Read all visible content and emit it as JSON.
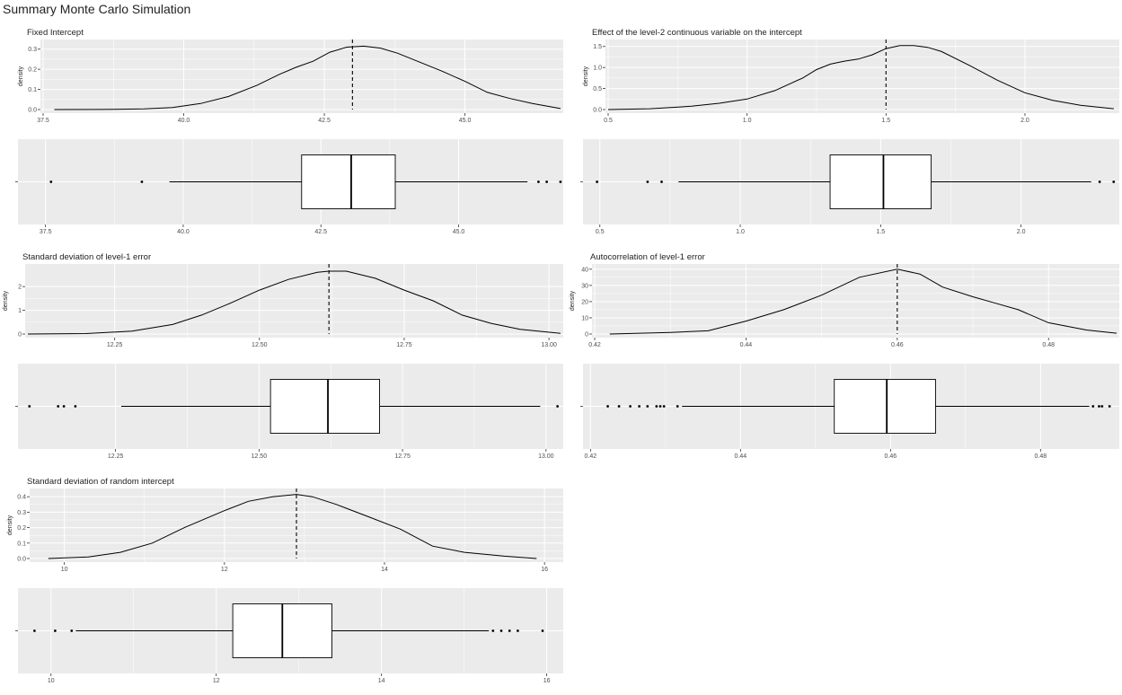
{
  "page": {
    "title": "Summary Monte Carlo Simulation"
  },
  "theme": {
    "panel_bg": "#EBEBEB",
    "grid": "#FFFFFF",
    "ink": "#000000",
    "tick_text": "#4D4D4D",
    "box_fill": "#FFFFFF"
  },
  "chart_data": [
    {
      "type": "area",
      "title": "Fixed Intercept",
      "ylabel": "density",
      "xlim": [
        37.5,
        46.7
      ],
      "ylim": [
        0,
        0.33
      ],
      "xticks": [
        37.5,
        40.0,
        42.5,
        45.0
      ],
      "xtick_labels": [
        "37.5",
        "40.0",
        "42.5",
        "45.0"
      ],
      "yticks": [
        0.0,
        0.1,
        0.2,
        0.3
      ],
      "ytick_labels": [
        "0.0",
        "0.1",
        "0.2",
        "0.3"
      ],
      "mean": 43.0,
      "x": [
        37.7,
        38.5,
        39.3,
        39.8,
        40.3,
        40.8,
        41.3,
        41.7,
        42.0,
        42.3,
        42.6,
        42.9,
        43.2,
        43.5,
        43.8,
        44.2,
        44.6,
        45.0,
        45.4,
        45.8,
        46.2,
        46.7
      ],
      "y": [
        0.0,
        0.0005,
        0.003,
        0.01,
        0.03,
        0.065,
        0.12,
        0.175,
        0.21,
        0.24,
        0.285,
        0.31,
        0.315,
        0.305,
        0.28,
        0.235,
        0.19,
        0.14,
        0.085,
        0.055,
        0.03,
        0.005
      ],
      "boxplot": {
        "xlim": [
          37.0,
          46.9
        ],
        "xticks": [
          37.5,
          40.0,
          42.5,
          45.0
        ],
        "xtick_labels": [
          "37.5",
          "40.0",
          "42.5",
          "45.0"
        ],
        "whisker_low": 39.75,
        "q1": 42.15,
        "median": 43.05,
        "q3": 43.85,
        "whisker_high": 46.25,
        "outliers": [
          37.6,
          39.25,
          46.45,
          46.6,
          46.85
        ]
      }
    },
    {
      "type": "area",
      "title": "Effect of the level-2 continuous variable on the intercept",
      "ylabel": "density",
      "xlim": [
        0.5,
        2.33
      ],
      "ylim": [
        0,
        1.58
      ],
      "xticks": [
        0.5,
        1.0,
        1.5,
        2.0
      ],
      "xtick_labels": [
        "0.5",
        "1.0",
        "1.5",
        "2.0"
      ],
      "yticks": [
        0.0,
        0.5,
        1.0,
        1.5
      ],
      "ytick_labels": [
        "0.0",
        "0.5",
        "1.0",
        "1.5"
      ],
      "mean": 1.5,
      "x": [
        0.5,
        0.65,
        0.8,
        0.9,
        1.0,
        1.1,
        1.2,
        1.25,
        1.3,
        1.35,
        1.4,
        1.45,
        1.5,
        1.55,
        1.6,
        1.65,
        1.7,
        1.8,
        1.9,
        2.0,
        2.1,
        2.2,
        2.32
      ],
      "y": [
        0.0,
        0.02,
        0.08,
        0.15,
        0.25,
        0.45,
        0.75,
        0.95,
        1.08,
        1.15,
        1.2,
        1.3,
        1.45,
        1.52,
        1.52,
        1.48,
        1.38,
        1.05,
        0.7,
        0.4,
        0.22,
        0.1,
        0.02
      ],
      "boxplot": {
        "xlim": [
          0.44,
          2.35
        ],
        "xticks": [
          0.5,
          1.0,
          1.5,
          2.0
        ],
        "xtick_labels": [
          "0.5",
          "1.0",
          "1.5",
          "2.0"
        ],
        "whisker_low": 0.78,
        "q1": 1.32,
        "median": 1.51,
        "q3": 1.68,
        "whisker_high": 2.25,
        "outliers": [
          0.49,
          0.67,
          0.72,
          2.28,
          2.33
        ]
      }
    },
    {
      "type": "area",
      "title": "Standard deviation of level-1 error",
      "ylabel": "density",
      "xlim": [
        12.1,
        13.02
      ],
      "ylim": [
        0,
        2.8
      ],
      "xticks": [
        12.25,
        12.5,
        12.75,
        13.0
      ],
      "xtick_labels": [
        "12.25",
        "12.50",
        "12.75",
        "13.00"
      ],
      "yticks": [
        0,
        1,
        2
      ],
      "ytick_labels": [
        "0",
        "1",
        "2"
      ],
      "mean": 12.62,
      "x": [
        12.1,
        12.2,
        12.28,
        12.35,
        12.4,
        12.45,
        12.5,
        12.55,
        12.6,
        12.62,
        12.65,
        12.7,
        12.75,
        12.8,
        12.85,
        12.9,
        12.95,
        13.02
      ],
      "y": [
        0.0,
        0.02,
        0.12,
        0.4,
        0.8,
        1.3,
        1.85,
        2.3,
        2.6,
        2.65,
        2.65,
        2.35,
        1.85,
        1.4,
        0.8,
        0.45,
        0.2,
        0.03
      ],
      "boxplot": {
        "xlim": [
          12.08,
          13.03
        ],
        "xticks": [
          12.25,
          12.5,
          12.75,
          13.0
        ],
        "xtick_labels": [
          "12.25",
          "12.50",
          "12.75",
          "13.00"
        ],
        "whisker_low": 12.26,
        "q1": 12.52,
        "median": 12.62,
        "q3": 12.71,
        "whisker_high": 12.99,
        "outliers": [
          12.1,
          12.15,
          12.16,
          12.18,
          13.02
        ]
      }
    },
    {
      "type": "area",
      "title": "Autocorrelation of level-1 error",
      "ylabel": "density",
      "xlim": [
        0.42,
        0.489
      ],
      "ylim": [
        0,
        41
      ],
      "xticks": [
        0.42,
        0.44,
        0.46,
        0.48
      ],
      "xtick_labels": [
        "0.42",
        "0.44",
        "0.46",
        "0.48"
      ],
      "yticks": [
        0,
        10,
        20,
        30,
        40
      ],
      "ytick_labels": [
        "0",
        "10",
        "20",
        "30",
        "40"
      ],
      "mean": 0.46,
      "x": [
        0.422,
        0.43,
        0.435,
        0.44,
        0.445,
        0.45,
        0.455,
        0.46,
        0.463,
        0.466,
        0.47,
        0.473,
        0.476,
        0.48,
        0.485,
        0.489
      ],
      "y": [
        0.0,
        1.0,
        2.0,
        8.0,
        15.0,
        24.0,
        35.0,
        40.0,
        37.0,
        29.0,
        23.0,
        19.0,
        15.0,
        7.0,
        2.5,
        0.5
      ],
      "boxplot": {
        "xlim": [
          0.419,
          0.4905
        ],
        "xticks": [
          0.42,
          0.44,
          0.46,
          0.48
        ],
        "xtick_labels": [
          "0.42",
          "0.44",
          "0.46",
          "0.48"
        ],
        "whisker_low": 0.4322,
        "q1": 0.4525,
        "median": 0.4595,
        "q3": 0.466,
        "whisker_high": 0.4865,
        "outliers": [
          0.4223,
          0.4238,
          0.4253,
          0.4265,
          0.4276,
          0.4288,
          0.4293,
          0.4298,
          0.4316,
          0.487,
          0.4878,
          0.4882,
          0.4892
        ]
      }
    },
    {
      "type": "area",
      "title": "Standard deviation of random intercept",
      "ylabel": "density",
      "xlim": [
        9.6,
        16.2
      ],
      "ylim": [
        0,
        0.43
      ],
      "xticks": [
        10,
        12,
        14,
        16
      ],
      "xtick_labels": [
        "10",
        "12",
        "14",
        "16"
      ],
      "yticks": [
        0.0,
        0.1,
        0.2,
        0.3,
        0.4
      ],
      "ytick_labels": [
        "0.0",
        "0.1",
        "0.2",
        "0.3",
        "0.4"
      ],
      "mean": 12.9,
      "x": [
        9.8,
        10.3,
        10.7,
        11.1,
        11.5,
        12.0,
        12.3,
        12.6,
        12.9,
        13.1,
        13.4,
        13.8,
        14.2,
        14.6,
        15.0,
        15.5,
        15.9
      ],
      "y": [
        0.0,
        0.01,
        0.04,
        0.1,
        0.2,
        0.31,
        0.37,
        0.4,
        0.415,
        0.4,
        0.35,
        0.27,
        0.19,
        0.08,
        0.04,
        0.015,
        0.0
      ],
      "boxplot": {
        "xlim": [
          9.6,
          16.2
        ],
        "xticks": [
          10,
          12,
          14,
          16
        ],
        "xtick_labels": [
          "10",
          "12",
          "14",
          "16"
        ],
        "whisker_low": 10.3,
        "q1": 12.2,
        "median": 12.8,
        "q3": 13.4,
        "whisker_high": 15.3,
        "outliers": [
          9.8,
          10.05,
          10.25,
          15.35,
          15.45,
          15.55,
          15.65,
          15.95
        ]
      }
    }
  ]
}
